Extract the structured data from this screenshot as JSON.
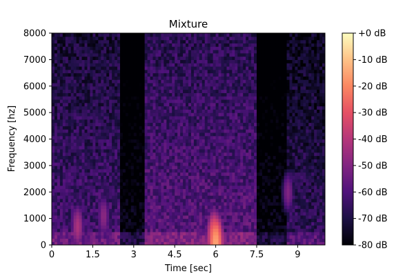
{
  "chart_data": {
    "type": "heatmap",
    "title": "Mixture",
    "xlabel": "Time [sec]",
    "ylabel": "Frequency [hz]",
    "xlim": [
      0,
      10
    ],
    "ylim": [
      0,
      8000
    ],
    "xticks": [
      0,
      1.5,
      3,
      4.5,
      6,
      7.5,
      9
    ],
    "xtick_labels": [
      "0",
      "1.5",
      "3",
      "4.5",
      "6",
      "7.5",
      "9"
    ],
    "yticks": [
      0,
      1000,
      2000,
      3000,
      4000,
      5000,
      6000,
      7000,
      8000
    ],
    "ytick_labels": [
      "0",
      "1000",
      "2000",
      "3000",
      "4000",
      "5000",
      "6000",
      "7000",
      "8000"
    ],
    "colormap": "magma",
    "colorbar": {
      "range_db": [
        -80,
        0
      ],
      "ticks": [
        0,
        -10,
        -20,
        -30,
        -40,
        -50,
        -60,
        -70,
        -80
      ],
      "tick_labels": [
        "+0 dB",
        "-10 dB",
        "-20 dB",
        "-30 dB",
        "-40 dB",
        "-50 dB",
        "-60 dB",
        "-70 dB",
        "-80 dB"
      ]
    },
    "grid": false,
    "segments": [
      {
        "t_start": 0.0,
        "t_end": 2.55,
        "level_db": -62
      },
      {
        "t_start": 2.55,
        "t_end": 3.45,
        "level_db": -78
      },
      {
        "t_start": 3.45,
        "t_end": 7.55,
        "level_db": -58
      },
      {
        "t_start": 7.55,
        "t_end": 8.6,
        "level_db": -78
      },
      {
        "t_start": 8.6,
        "t_end": 10.0,
        "level_db": -66
      }
    ],
    "bright_spots": [
      {
        "t": 0.95,
        "f": 700,
        "level_db": -42
      },
      {
        "t": 1.9,
        "f": 1100,
        "level_db": -48
      },
      {
        "t": 5.95,
        "f": 300,
        "level_db": -22
      },
      {
        "t": 6.0,
        "f": 100,
        "level_db": -15
      },
      {
        "t": 8.65,
        "f": 2000,
        "level_db": -50
      }
    ]
  }
}
